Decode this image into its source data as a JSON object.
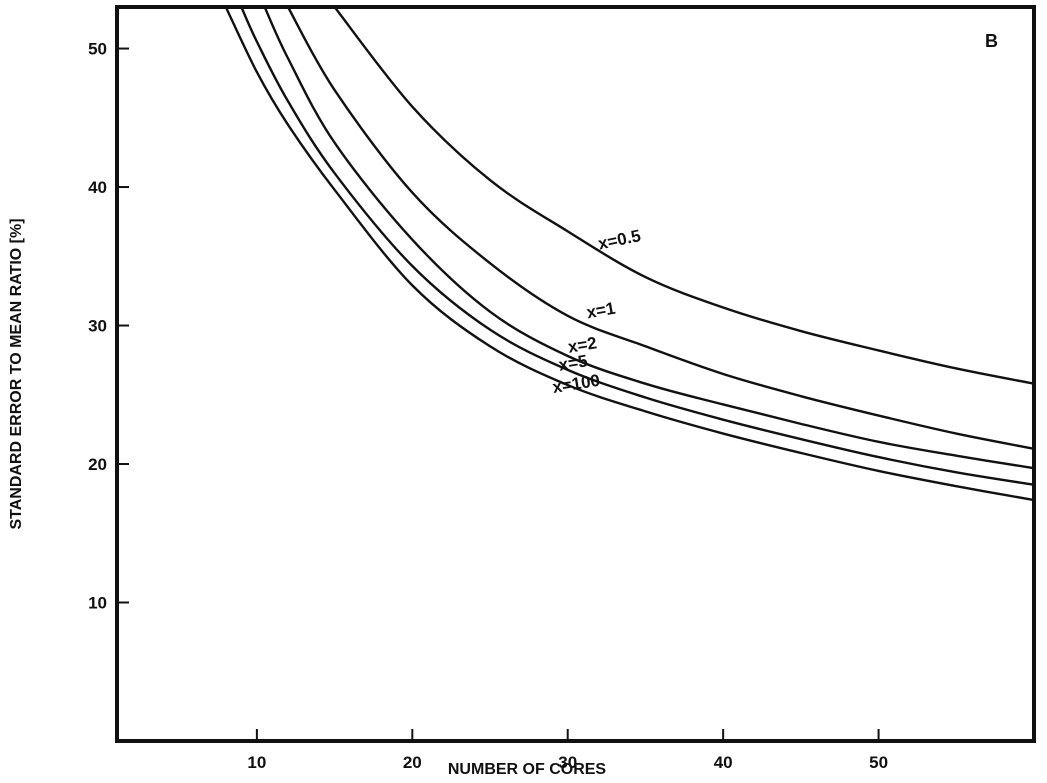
{
  "chart_data": {
    "type": "line",
    "panel_label": "B",
    "xlabel": "NUMBER OF CORES",
    "ylabel": "STANDARD ERROR TO MEAN RATIO [%]",
    "xlim": [
      1,
      60
    ],
    "ylim": [
      0,
      53
    ],
    "xticks": [
      10,
      20,
      30,
      40,
      50
    ],
    "yticks": [
      10,
      20,
      30,
      40,
      50
    ],
    "grid": false,
    "series": [
      {
        "name": "x=0.5",
        "x": [
          15,
          20,
          25,
          30,
          35,
          40,
          45,
          50,
          55,
          60
        ],
        "y": [
          53,
          45.8,
          40.5,
          36.8,
          33.5,
          31.3,
          29.6,
          28.2,
          26.9,
          25.8
        ]
      },
      {
        "name": "x=1",
        "x": [
          12,
          15,
          20,
          25,
          30,
          35,
          40,
          45,
          50,
          55,
          60
        ],
        "y": [
          53,
          47,
          39.6,
          34.5,
          30.7,
          28.5,
          26.5,
          24.9,
          23.5,
          22.2,
          21.1
        ]
      },
      {
        "name": "x=2",
        "x": [
          10.5,
          12,
          15,
          20,
          25,
          30,
          35,
          40,
          45,
          50,
          55,
          60
        ],
        "y": [
          53,
          49.3,
          43.2,
          36.2,
          31.0,
          27.8,
          25.8,
          24.3,
          22.9,
          21.6,
          20.6,
          19.7
        ]
      },
      {
        "name": "x=5",
        "x": [
          9,
          10,
          12,
          15,
          20,
          25,
          30,
          35,
          40,
          45,
          50,
          55,
          60
        ],
        "y": [
          53,
          50.5,
          46.2,
          41,
          34.3,
          29.7,
          26.8,
          24.8,
          23.2,
          21.8,
          20.5,
          19.4,
          18.5
        ]
      },
      {
        "name": "x=100",
        "x": [
          8,
          10,
          12,
          15,
          20,
          25,
          30,
          35,
          40,
          45,
          50,
          55,
          60
        ],
        "y": [
          53,
          48.3,
          44.5,
          39.8,
          32.9,
          28.5,
          25.7,
          23.8,
          22.2,
          20.8,
          19.5,
          18.4,
          17.4
        ]
      }
    ],
    "annotations": [
      {
        "text": "x=0.5",
        "x": 33.4,
        "y": 35.8,
        "angle": -12
      },
      {
        "text": "x=1",
        "x": 32.2,
        "y": 30.7,
        "angle": -10
      },
      {
        "text": "x=2",
        "x": 31.0,
        "y": 28.2,
        "angle": -9
      },
      {
        "text": "x=5",
        "x": 30.4,
        "y": 26.9,
        "angle": -9
      },
      {
        "text": "x=100",
        "x": 30.6,
        "y": 25.4,
        "angle": -9
      }
    ]
  }
}
